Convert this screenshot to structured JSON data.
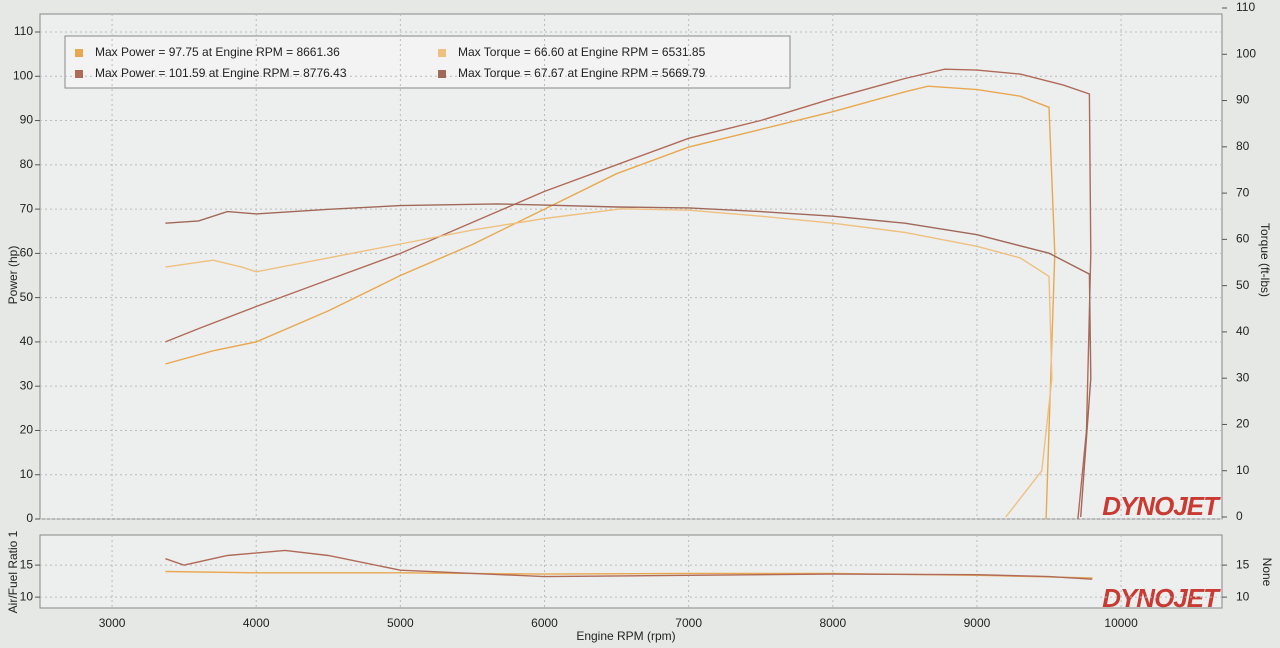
{
  "chart_data": [
    {
      "type": "line",
      "y_label": "Power (hp)",
      "y2_label": "Torque (ft-lbs)",
      "xlim": [
        2500,
        10700
      ],
      "ylim": [
        0,
        110
      ],
      "y2lim": [
        0,
        110
      ],
      "yticks": [
        0,
        10,
        20,
        30,
        40,
        50,
        60,
        70,
        80,
        90,
        100,
        110
      ],
      "y2ticks": [
        0,
        10,
        20,
        30,
        40,
        50,
        60,
        70,
        80,
        90,
        100,
        110
      ],
      "grid": true,
      "legend": "upper left",
      "watermark": "DYNOJET",
      "series": [
        {
          "name": "Max Power = 97.75 at Engine RPM = 8661.36",
          "color": "#e8a850",
          "axis": "y",
          "x": [
            3370,
            3700,
            4000,
            4500,
            5000,
            5500,
            6000,
            6500,
            7000,
            7500,
            8000,
            8500,
            8661,
            9000,
            9300,
            9500,
            9540,
            9500,
            9480
          ],
          "values": [
            35,
            38,
            40,
            47,
            55,
            62,
            70,
            78,
            84,
            88,
            92,
            96.5,
            97.75,
            97,
            95.5,
            93,
            60,
            20,
            0
          ]
        },
        {
          "name": "Max Power = 101.59 at Engine RPM = 8776.43",
          "color": "#b06a58",
          "axis": "y",
          "x": [
            3370,
            3600,
            4000,
            4500,
            5000,
            5500,
            6000,
            6500,
            7000,
            7500,
            8000,
            8500,
            8776,
            9000,
            9300,
            9600,
            9780,
            9790,
            9760,
            9700
          ],
          "values": [
            40,
            43,
            48,
            54,
            60,
            67,
            74,
            80,
            86,
            90,
            95,
            99.5,
            101.59,
            101.4,
            100.5,
            98,
            96,
            60,
            20,
            0
          ]
        },
        {
          "name": "Max Torque = 66.60 at Engine RPM = 6531.85",
          "color": "#eec080",
          "axis": "y2",
          "x": [
            3370,
            3700,
            3900,
            4000,
            4500,
            5000,
            5500,
            6000,
            6531,
            7000,
            7500,
            8000,
            8500,
            9000,
            9300,
            9500,
            9520,
            9450,
            9200
          ],
          "values": [
            54,
            55.5,
            54,
            53,
            56,
            59,
            62,
            64.5,
            66.6,
            66.3,
            65,
            63.5,
            61.5,
            58.5,
            56,
            52,
            30,
            10,
            0
          ]
        },
        {
          "name": "Max Torque = 67.67 at Engine RPM = 5669.79",
          "color": "#a06858",
          "axis": "y2",
          "x": [
            3370,
            3600,
            3800,
            4000,
            4500,
            5000,
            5669,
            6000,
            6500,
            7000,
            7500,
            8000,
            8500,
            9000,
            9500,
            9780,
            9790,
            9720
          ],
          "values": [
            63.5,
            64,
            66,
            65.5,
            66.5,
            67.3,
            67.67,
            67.4,
            67,
            66.8,
            66,
            65,
            63.5,
            61,
            57,
            52.5,
            30,
            0
          ]
        }
      ]
    },
    {
      "type": "line",
      "x_label": "Engine RPM (rpm)",
      "y_label": "Air/Fuel Ratio 1",
      "y2_label": "None",
      "xlim": [
        2500,
        10700
      ],
      "ylim": [
        8.3,
        19.7
      ],
      "y2lim": [
        8.3,
        19.7
      ],
      "xticks": [
        3000,
        4000,
        5000,
        6000,
        7000,
        8000,
        9000,
        10000
      ],
      "yticks": [
        10,
        15
      ],
      "y2ticks": [
        10,
        15
      ],
      "grid": true,
      "watermark": "DYNOJET",
      "series": [
        {
          "color": "#e8a850",
          "axis": "y",
          "x": [
            3370,
            4000,
            5000,
            6000,
            7000,
            8000,
            9000,
            9800
          ],
          "values": [
            14,
            13.8,
            13.8,
            13.6,
            13.7,
            13.7,
            13.4,
            13
          ]
        },
        {
          "color": "#b06a58",
          "axis": "y",
          "x": [
            3370,
            3500,
            3800,
            4200,
            4500,
            5000,
            6000,
            7000,
            8000,
            9000,
            9500,
            9800
          ],
          "values": [
            16,
            15,
            16.5,
            17.3,
            16.5,
            14.2,
            13.2,
            13.4,
            13.6,
            13.5,
            13.2,
            12.8
          ]
        }
      ]
    }
  ]
}
